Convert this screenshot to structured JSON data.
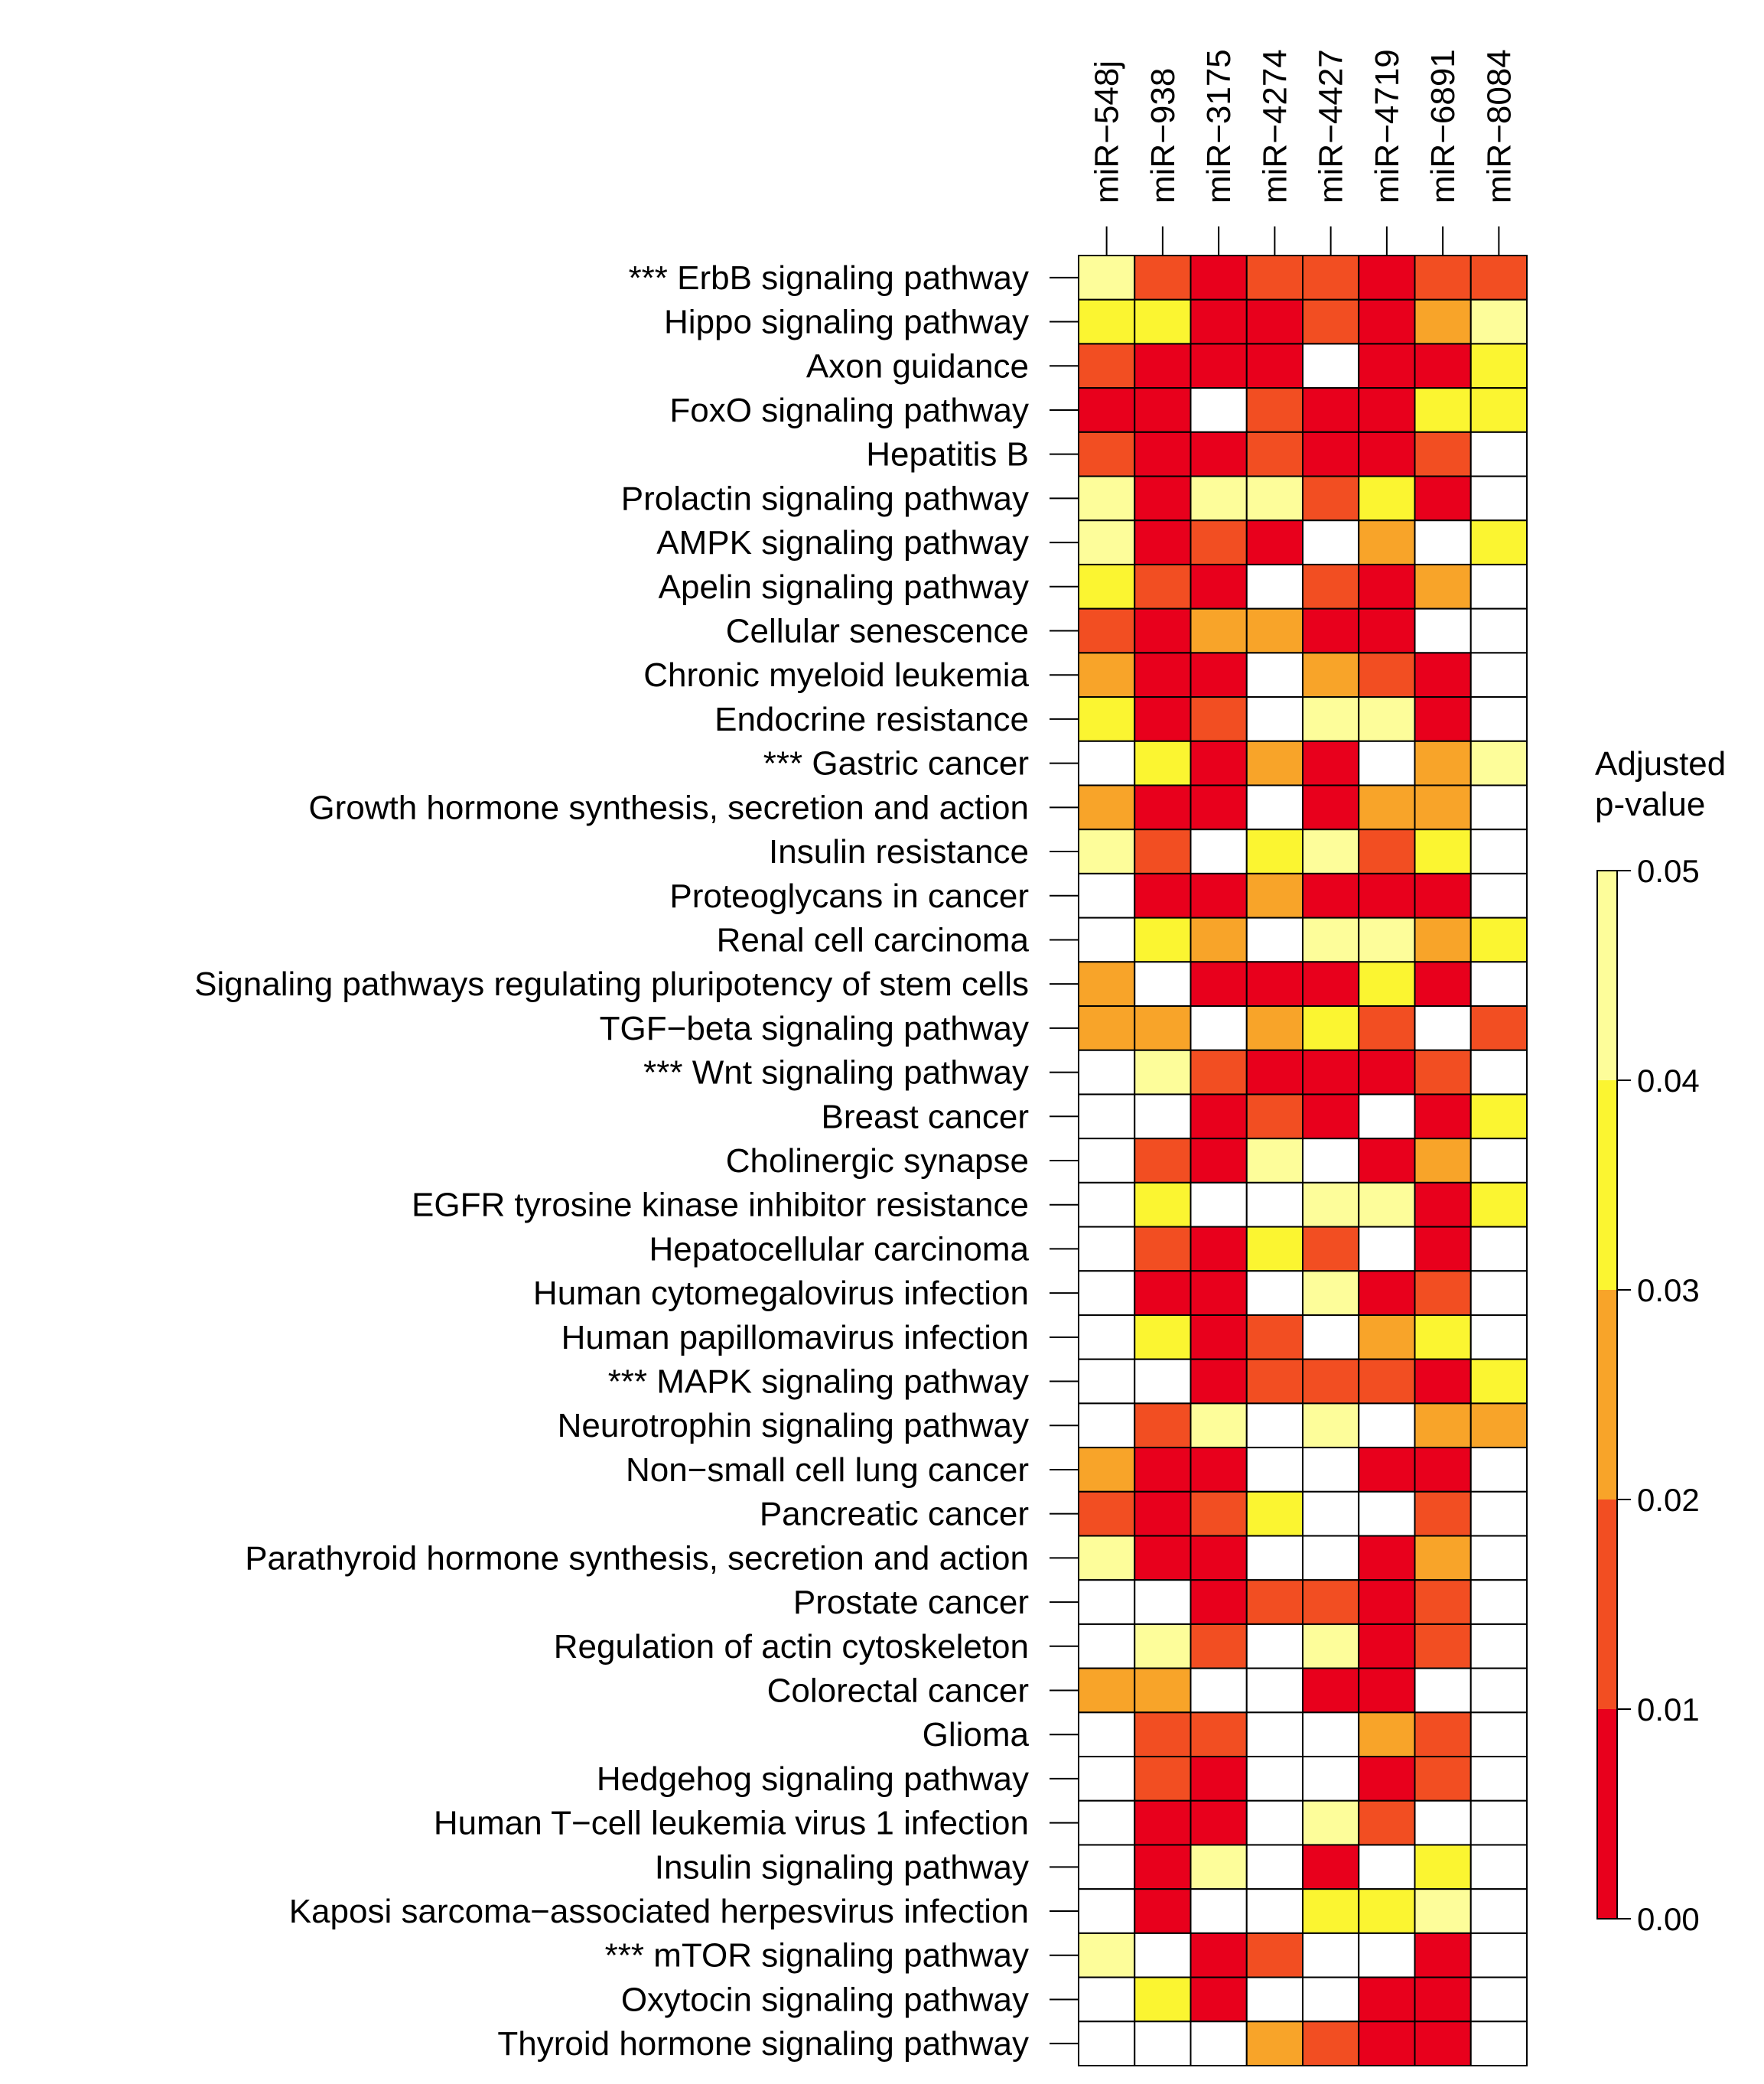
{
  "chart_data": {
    "type": "heatmap",
    "title": "",
    "columns": [
      "miR−548j",
      "miR−938",
      "miR−3175",
      "miR−4274",
      "miR−4427",
      "miR−4719",
      "miR−6891",
      "miR−8084"
    ],
    "rows": [
      {
        "marker": "***",
        "label": "ErbB signaling pathway"
      },
      {
        "marker": "",
        "label": "Hippo signaling pathway"
      },
      {
        "marker": "",
        "label": "Axon guidance"
      },
      {
        "marker": "",
        "label": "FoxO signaling pathway"
      },
      {
        "marker": "",
        "label": "Hepatitis B"
      },
      {
        "marker": "",
        "label": "Prolactin signaling pathway"
      },
      {
        "marker": "",
        "label": "AMPK signaling pathway"
      },
      {
        "marker": "",
        "label": "Apelin signaling pathway"
      },
      {
        "marker": "",
        "label": "Cellular senescence"
      },
      {
        "marker": "",
        "label": "Chronic myeloid leukemia"
      },
      {
        "marker": "",
        "label": "Endocrine resistance"
      },
      {
        "marker": "***",
        "label": "Gastric cancer"
      },
      {
        "marker": "",
        "label": "Growth hormone synthesis, secretion and action"
      },
      {
        "marker": "",
        "label": "Insulin resistance"
      },
      {
        "marker": "",
        "label": "Proteoglycans in cancer"
      },
      {
        "marker": "",
        "label": "Renal cell carcinoma"
      },
      {
        "marker": "",
        "label": "Signaling pathways regulating pluripotency of stem cells"
      },
      {
        "marker": "",
        "label": "TGF−beta signaling pathway"
      },
      {
        "marker": "***",
        "label": "Wnt signaling pathway"
      },
      {
        "marker": "",
        "label": "Breast cancer"
      },
      {
        "marker": "",
        "label": "Cholinergic synapse"
      },
      {
        "marker": "",
        "label": "EGFR tyrosine kinase inhibitor resistance"
      },
      {
        "marker": "",
        "label": "Hepatocellular carcinoma"
      },
      {
        "marker": "",
        "label": "Human cytomegalovirus infection"
      },
      {
        "marker": "",
        "label": "Human papillomavirus infection"
      },
      {
        "marker": "***",
        "label": "MAPK signaling pathway"
      },
      {
        "marker": "",
        "label": "Neurotrophin signaling pathway"
      },
      {
        "marker": "",
        "label": "Non−small cell lung cancer"
      },
      {
        "marker": "",
        "label": "Pancreatic cancer"
      },
      {
        "marker": "",
        "label": "Parathyroid hormone synthesis, secretion and action"
      },
      {
        "marker": "",
        "label": "Prostate cancer"
      },
      {
        "marker": "",
        "label": "Regulation of actin cytoskeleton"
      },
      {
        "marker": "",
        "label": "Colorectal cancer"
      },
      {
        "marker": "",
        "label": "Glioma"
      },
      {
        "marker": "",
        "label": "Hedgehog signaling pathway"
      },
      {
        "marker": "",
        "label": "Human T−cell leukemia virus 1 infection"
      },
      {
        "marker": "",
        "label": "Insulin signaling pathway"
      },
      {
        "marker": "",
        "label": "Kaposi sarcoma−associated herpesvirus infection"
      },
      {
        "marker": "***",
        "label": "mTOR signaling pathway"
      },
      {
        "marker": "",
        "label": "Oxytocin signaling pathway"
      },
      {
        "marker": "",
        "label": "Thyroid hormone signaling pathway"
      }
    ],
    "values_note": "Adjusted p-value per pathway (rows) and miRNA (columns); null = not significant (white cell). Values estimated from colour bins.",
    "values": [
      [
        0.045,
        0.015,
        0.005,
        0.015,
        0.015,
        0.005,
        0.015,
        0.015
      ],
      [
        0.035,
        0.035,
        0.005,
        0.005,
        0.015,
        0.005,
        0.025,
        0.045
      ],
      [
        0.015,
        0.005,
        0.005,
        0.005,
        null,
        0.005,
        0.005,
        0.035
      ],
      [
        0.005,
        0.005,
        null,
        0.015,
        0.005,
        0.005,
        0.035,
        0.035
      ],
      [
        0.015,
        0.005,
        0.005,
        0.015,
        0.005,
        0.005,
        0.015,
        null
      ],
      [
        0.045,
        0.005,
        0.045,
        0.045,
        0.015,
        0.035,
        0.005,
        null
      ],
      [
        0.045,
        0.005,
        0.015,
        0.005,
        null,
        0.025,
        null,
        0.035
      ],
      [
        0.035,
        0.015,
        0.005,
        null,
        0.015,
        0.005,
        0.025,
        null
      ],
      [
        0.015,
        0.005,
        0.025,
        0.025,
        0.005,
        0.005,
        null,
        null
      ],
      [
        0.025,
        0.005,
        0.005,
        null,
        0.025,
        0.015,
        0.005,
        null
      ],
      [
        0.035,
        0.005,
        0.015,
        null,
        0.045,
        0.045,
        0.005,
        null
      ],
      [
        null,
        0.035,
        0.005,
        0.025,
        0.005,
        null,
        0.025,
        0.045
      ],
      [
        0.025,
        0.005,
        0.005,
        null,
        0.005,
        0.025,
        0.025,
        null
      ],
      [
        0.045,
        0.015,
        null,
        0.035,
        0.045,
        0.015,
        0.035,
        null
      ],
      [
        null,
        0.005,
        0.005,
        0.025,
        0.005,
        0.005,
        0.005,
        null
      ],
      [
        null,
        0.035,
        0.025,
        null,
        0.045,
        0.045,
        0.025,
        0.035
      ],
      [
        0.025,
        null,
        0.005,
        0.005,
        0.005,
        0.035,
        0.005,
        null
      ],
      [
        0.025,
        0.025,
        null,
        0.025,
        0.035,
        0.015,
        null,
        0.015
      ],
      [
        null,
        0.045,
        0.015,
        0.005,
        0.005,
        0.005,
        0.015,
        null
      ],
      [
        null,
        null,
        0.005,
        0.015,
        0.005,
        null,
        0.005,
        0.035
      ],
      [
        null,
        0.015,
        0.005,
        0.045,
        null,
        0.005,
        0.025,
        null
      ],
      [
        null,
        0.035,
        null,
        null,
        0.045,
        0.045,
        0.005,
        0.035
      ],
      [
        null,
        0.015,
        0.005,
        0.035,
        0.015,
        null,
        0.005,
        null
      ],
      [
        null,
        0.005,
        0.005,
        null,
        0.045,
        0.005,
        0.015,
        null
      ],
      [
        null,
        0.035,
        0.005,
        0.015,
        null,
        0.025,
        0.035,
        null
      ],
      [
        null,
        null,
        0.005,
        0.015,
        0.015,
        0.015,
        0.005,
        0.035
      ],
      [
        null,
        0.015,
        0.045,
        null,
        0.045,
        null,
        0.025,
        0.025
      ],
      [
        0.025,
        0.005,
        0.005,
        null,
        null,
        0.005,
        0.005,
        null
      ],
      [
        0.015,
        0.005,
        0.015,
        0.035,
        null,
        null,
        0.015,
        null
      ],
      [
        0.045,
        0.005,
        0.005,
        null,
        null,
        0.005,
        0.025,
        null
      ],
      [
        null,
        null,
        0.005,
        0.015,
        0.015,
        0.005,
        0.015,
        null
      ],
      [
        null,
        0.045,
        0.015,
        null,
        0.045,
        0.005,
        0.015,
        null
      ],
      [
        0.025,
        0.025,
        null,
        null,
        0.005,
        0.005,
        null,
        null
      ],
      [
        null,
        0.015,
        0.015,
        null,
        null,
        0.025,
        0.015,
        null
      ],
      [
        null,
        0.015,
        0.005,
        null,
        null,
        0.005,
        0.015,
        null
      ],
      [
        null,
        0.005,
        0.005,
        null,
        0.045,
        0.015,
        null,
        null
      ],
      [
        null,
        0.005,
        0.045,
        null,
        0.005,
        null,
        0.035,
        null
      ],
      [
        null,
        0.005,
        null,
        null,
        0.035,
        0.035,
        0.045,
        null
      ],
      [
        0.045,
        null,
        0.005,
        0.015,
        null,
        null,
        0.005,
        null
      ],
      [
        null,
        0.035,
        0.005,
        null,
        null,
        0.005,
        0.005,
        null
      ],
      [
        null,
        null,
        null,
        0.025,
        0.015,
        0.005,
        0.005,
        null
      ]
    ],
    "legend": {
      "title_line1": "Adjusted",
      "title_line2": "p-value",
      "ticks": [
        "0.00",
        "0.01",
        "0.02",
        "0.03",
        "0.04",
        "0.05"
      ],
      "range": [
        0,
        0.05
      ],
      "bins": [
        {
          "min": 0.0,
          "max": 0.01,
          "color": "#e8001c"
        },
        {
          "min": 0.01,
          "max": 0.02,
          "color": "#f24e22"
        },
        {
          "min": 0.02,
          "max": 0.03,
          "color": "#f8a429"
        },
        {
          "min": 0.03,
          "max": 0.04,
          "color": "#fbf531"
        },
        {
          "min": 0.04,
          "max": 0.05,
          "color": "#fdfd9a"
        }
      ],
      "na_color": "#ffffff"
    }
  }
}
